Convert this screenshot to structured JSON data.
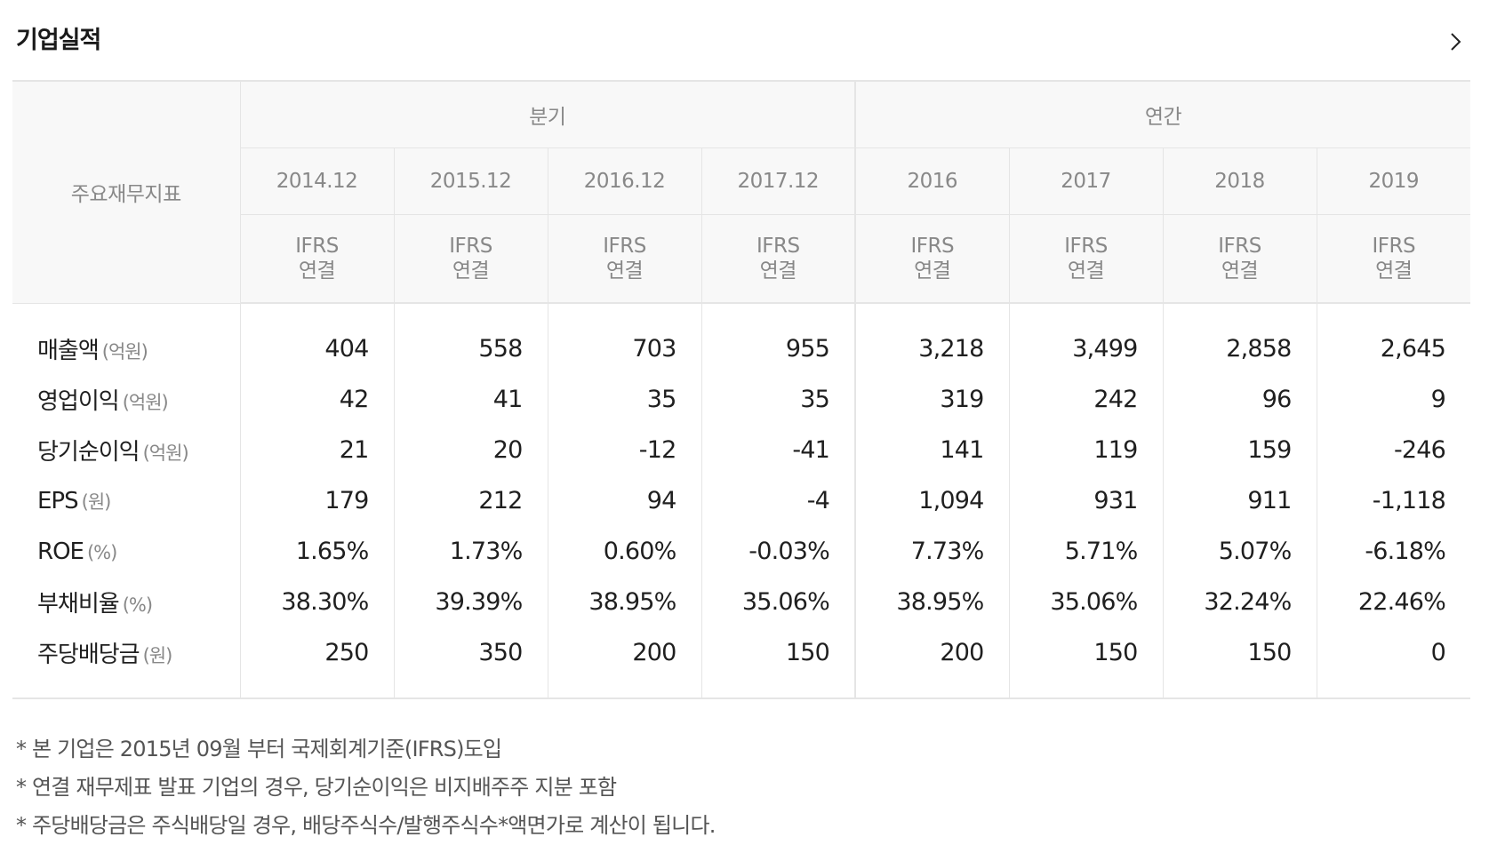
{
  "header": {
    "title": "기업실적"
  },
  "table": {
    "corner_label": "주요재무지표",
    "groups": [
      "분기",
      "연간"
    ],
    "periods": [
      "2014.12",
      "2015.12",
      "2016.12",
      "2017.12",
      "2016",
      "2017",
      "2018",
      "2019"
    ],
    "standard": [
      "IFRS",
      "연결"
    ],
    "rows": [
      {
        "label": "매출액",
        "unit": "(억원)",
        "values": [
          "404",
          "558",
          "703",
          "955",
          "3,218",
          "3,499",
          "2,858",
          "2,645"
        ]
      },
      {
        "label": "영업이익",
        "unit": "(억원)",
        "values": [
          "42",
          "41",
          "35",
          "35",
          "319",
          "242",
          "96",
          "9"
        ]
      },
      {
        "label": "당기순이익",
        "unit": "(억원)",
        "values": [
          "21",
          "20",
          "-12",
          "-41",
          "141",
          "119",
          "159",
          "-246"
        ]
      },
      {
        "label": "EPS",
        "unit": "(원)",
        "values": [
          "179",
          "212",
          "94",
          "-4",
          "1,094",
          "931",
          "911",
          "-1,118"
        ]
      },
      {
        "label": "ROE",
        "unit": "(%)",
        "values": [
          "1.65%",
          "1.73%",
          "0.60%",
          "-0.03%",
          "7.73%",
          "5.71%",
          "5.07%",
          "-6.18%"
        ]
      },
      {
        "label": "부채비율",
        "unit": "(%)",
        "values": [
          "38.30%",
          "39.39%",
          "38.95%",
          "35.06%",
          "38.95%",
          "35.06%",
          "32.24%",
          "22.46%"
        ]
      },
      {
        "label": "주당배당금",
        "unit": "(원)",
        "values": [
          "250",
          "350",
          "200",
          "150",
          "200",
          "150",
          "150",
          "0"
        ]
      }
    ]
  },
  "notes": [
    "* 본 기업은 2015년 09월 부터 국제회계기준(IFRS)도입",
    "* 연결 재무제표 발표 기업의 경우, 당기순이익은 비지배주주 지분 포함",
    "* 주당배당금은 주식배당일 경우, 배당주식수/발행주식수*액면가로 계산이 됩니다."
  ],
  "icons": {
    "more": "chevron-right-icon"
  },
  "colors": {
    "header_bg": "#f8f8f8",
    "border": "#e5e5e5",
    "muted_text": "#888888",
    "body_text": "#1f1f1f"
  }
}
